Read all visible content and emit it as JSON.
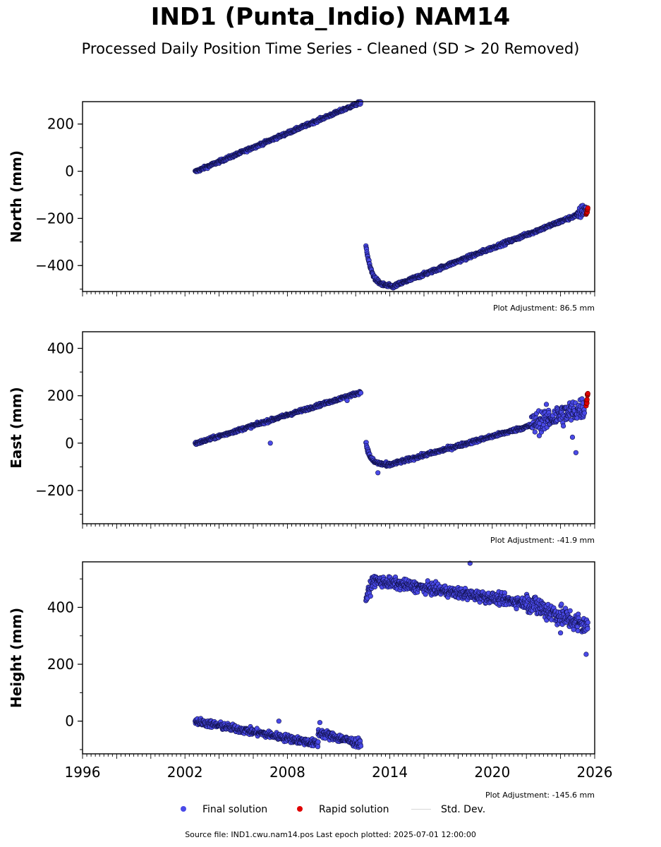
{
  "title": "IND1 (Punta_Indio) NAM14",
  "subtitle": "Processed Daily Position Time Series - Cleaned (SD > 20 Removed)",
  "footer": "Source file: IND1.cwu.nam14.pos  Last epoch plotted: 2025-07-01 12:00:00",
  "legend": {
    "final": "Final solution",
    "rapid": "Rapid solution",
    "std": "Std. Dev."
  },
  "colors": {
    "final": "#4a4ae8",
    "final_edge": "#10104a",
    "rapid": "#e00000",
    "std": "#d8d8d8"
  },
  "chart_data": [
    {
      "type": "scatter",
      "ylabel": "North (mm)",
      "adjustment": "Plot Adjustment: 86.5 mm",
      "xlim": [
        1996,
        2026
      ],
      "ylim": [
        -510,
        295
      ],
      "yticks": [
        200,
        0,
        -200,
        -400
      ],
      "ytick_labels": [
        "200",
        "0",
        "−200",
        "−400"
      ],
      "series": [
        {
          "name": "Final solution",
          "segments": [
            {
              "x0": 2002.6,
              "x1": 2012.3,
              "y0": -2,
              "y1": 292,
              "noise": 6
            },
            {
              "curve": "recovery",
              "x0": 2012.6,
              "x1": 2014.3,
              "y0": -315,
              "y1": -490,
              "noise": 8
            },
            {
              "x0": 2014.3,
              "x1": 2025.0,
              "y0": -485,
              "y1": -185,
              "noise": 7
            },
            {
              "x0": 2025.0,
              "x1": 2025.5,
              "y0": -185,
              "y1": -155,
              "noise": 25
            }
          ]
        },
        {
          "name": "Rapid solution",
          "segments": [
            {
              "x0": 2025.5,
              "x1": 2025.6,
              "y0": -185,
              "y1": -155,
              "noise": 12
            }
          ]
        }
      ]
    },
    {
      "type": "scatter",
      "ylabel": "East (mm)",
      "adjustment": "Plot Adjustment: -41.9 mm",
      "xlim": [
        1996,
        2026
      ],
      "ylim": [
        -340,
        470
      ],
      "yticks": [
        400,
        200,
        0,
        -200
      ],
      "ytick_labels": [
        "400",
        "200",
        "0",
        "−200"
      ],
      "series": [
        {
          "name": "Final solution",
          "segments": [
            {
              "x0": 2002.6,
              "x1": 2012.3,
              "y0": -2,
              "y1": 215,
              "noise": 6
            },
            {
              "curve": "recovery",
              "x0": 2012.6,
              "x1": 2013.8,
              "y0": 5,
              "y1": -90,
              "noise": 8
            },
            {
              "x0": 2013.8,
              "x1": 2022.3,
              "y0": -95,
              "y1": 75,
              "noise": 7
            },
            {
              "x0": 2022.3,
              "x1": 2025.4,
              "y0": 80,
              "y1": 150,
              "noise": 45
            }
          ],
          "outliers": [
            [
              2007.0,
              0
            ],
            [
              2013.3,
              -125
            ],
            [
              2011.5,
              180
            ],
            [
              2024.7,
              25
            ],
            [
              2024.9,
              -40
            ]
          ]
        },
        {
          "name": "Rapid solution",
          "segments": [
            {
              "x0": 2025.5,
              "x1": 2025.6,
              "y0": 160,
              "y1": 215,
              "noise": 14
            }
          ]
        }
      ]
    },
    {
      "type": "scatter",
      "ylabel": "Height (mm)",
      "adjustment": "Plot Adjustment: -145.6 mm",
      "xlim": [
        1996,
        2026
      ],
      "ylim": [
        -115,
        560
      ],
      "yticks": [
        400,
        200,
        0
      ],
      "ytick_labels": [
        "400",
        "200",
        "0"
      ],
      "xticks": [
        1996,
        2002,
        2008,
        2014,
        2020,
        2026
      ],
      "series": [
        {
          "name": "Final solution",
          "segments": [
            {
              "x0": 2002.6,
              "x1": 2009.8,
              "y0": 0,
              "y1": -80,
              "noise": 12
            },
            {
              "x0": 2009.8,
              "x1": 2012.3,
              "y0": -40,
              "y1": -80,
              "noise": 14
            },
            {
              "x0": 2012.6,
              "x1": 2013.0,
              "y0": 430,
              "y1": 490,
              "noise": 20
            },
            {
              "x0": 2013.0,
              "x1": 2022.0,
              "y0": 495,
              "y1": 415,
              "noise": 18
            },
            {
              "x0": 2022.0,
              "x1": 2025.6,
              "y0": 420,
              "y1": 330,
              "noise": 35
            }
          ],
          "outliers": [
            [
              2007.5,
              0
            ],
            [
              2009.9,
              -5
            ],
            [
              2018.7,
              555
            ],
            [
              2024.0,
              310
            ],
            [
              2025.5,
              235
            ]
          ]
        }
      ]
    }
  ]
}
